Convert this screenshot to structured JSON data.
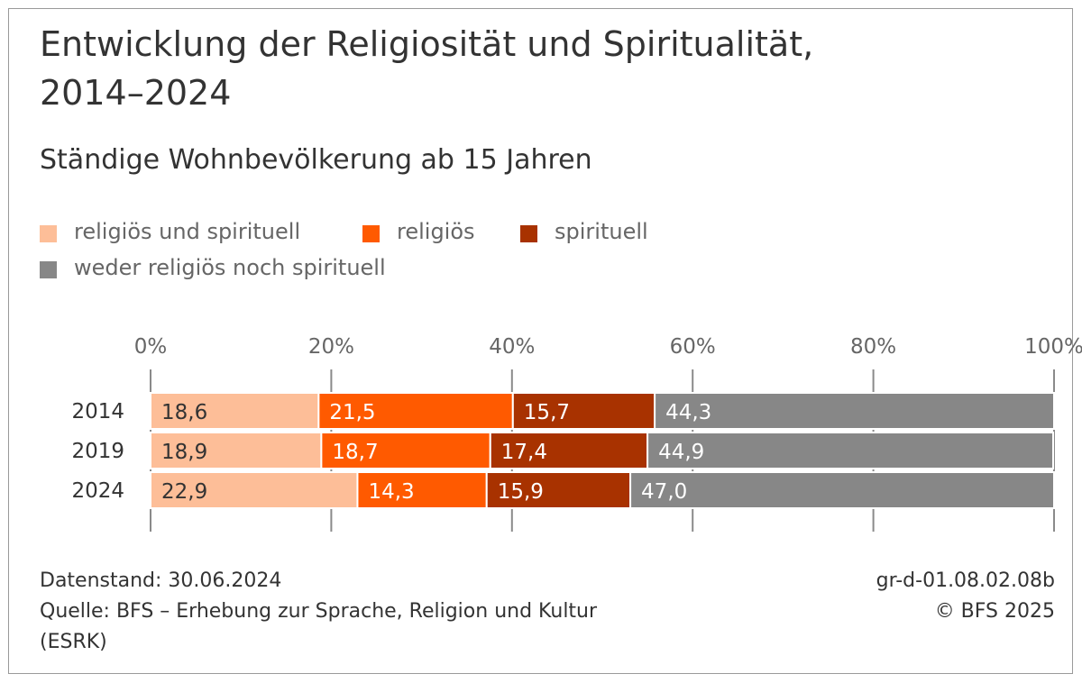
{
  "title_line1": "Entwicklung der Religiosität und Spiritualität,",
  "title_line2": "2014–2024",
  "subtitle": "Ständige Wohnbevölkerung ab 15 Jahren",
  "legend": [
    {
      "label": "religiös und spirituell",
      "color": "#FDBE98"
    },
    {
      "label": "religiös",
      "color": "#FF5A00"
    },
    {
      "label": "spirituell",
      "color": "#A83200"
    },
    {
      "label": "weder religiös noch spirituell",
      "color": "#878787"
    }
  ],
  "chart_data": {
    "type": "bar",
    "orientation": "horizontal",
    "stacked": true,
    "categories": [
      "2014",
      "2019",
      "2024"
    ],
    "series": [
      {
        "name": "religiös und spirituell",
        "color": "#FDBE98",
        "values": [
          18.6,
          18.9,
          22.9
        ],
        "labels": [
          "18,6",
          "18,9",
          "22,9"
        ],
        "label_color": "#333333"
      },
      {
        "name": "religiös",
        "color": "#FF5A00",
        "values": [
          21.5,
          18.7,
          14.3
        ],
        "labels": [
          "21,5",
          "18,7",
          "14,3"
        ],
        "label_color": "#ffffff"
      },
      {
        "name": "spirituell",
        "color": "#A83200",
        "values": [
          15.7,
          17.4,
          15.9
        ],
        "labels": [
          "15,7",
          "17,4",
          "15,9"
        ],
        "label_color": "#ffffff"
      },
      {
        "name": "weder religiös noch spirituell",
        "color": "#878787",
        "values": [
          44.3,
          44.9,
          47.0
        ],
        "labels": [
          "44,3",
          "44,9",
          "47,0"
        ],
        "label_color": "#ffffff"
      }
    ],
    "xlim": [
      0,
      100
    ],
    "x_ticks": [
      0,
      20,
      40,
      60,
      80,
      100
    ],
    "x_tick_labels": [
      "0%",
      "20%",
      "40%",
      "60%",
      "80%",
      "100%"
    ],
    "grid": true,
    "legend_position": "top"
  },
  "footer": {
    "datenstand": "Datenstand: 30.06.2024",
    "quelle_line1": "Quelle: BFS – Erhebung zur Sprache, Religion und Kultur",
    "quelle_line2": "(ESRK)",
    "code": "gr-d-01.08.02.08b",
    "copyright": "© BFS 2025"
  }
}
